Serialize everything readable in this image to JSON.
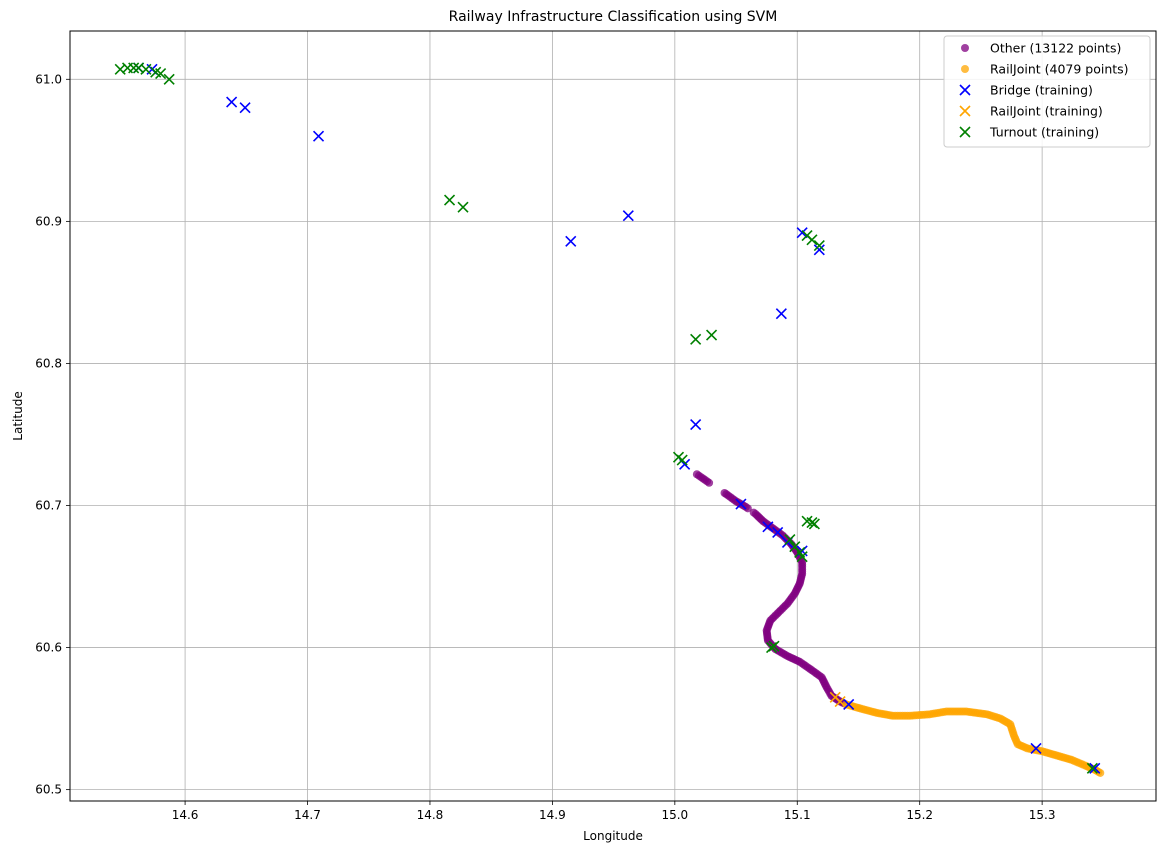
{
  "chart_data": {
    "type": "scatter",
    "title": "Railway Infrastructure Classification using SVM",
    "xlabel": "Longitude",
    "ylabel": "Latitude",
    "xlim": [
      14.506,
      15.393
    ],
    "ylim": [
      60.492,
      61.034
    ],
    "xticks": [
      14.6,
      14.7,
      14.8,
      14.9,
      15.0,
      15.1,
      15.2,
      15.3
    ],
    "yticks": [
      60.5,
      60.6,
      60.7,
      60.8,
      60.9,
      61.0
    ],
    "xtick_labels": [
      "14.6",
      "14.7",
      "14.8",
      "14.9",
      "15.0",
      "15.1",
      "15.2",
      "15.3"
    ],
    "ytick_labels": [
      "60.5",
      "60.6",
      "60.7",
      "60.8",
      "60.9",
      "61.0"
    ],
    "grid": true,
    "legend_position": "top-right",
    "series": [
      {
        "name": "Other (13122 points)",
        "marker": "circle",
        "color": "#800080",
        "alpha": 0.75,
        "path": [
          [
            15.018,
            60.722
          ],
          [
            15.028,
            60.716
          ],
          [
            15.035,
            60.712
          ],
          [
            15.042,
            60.708
          ],
          [
            15.05,
            60.703
          ],
          [
            15.058,
            60.699
          ],
          [
            15.066,
            60.694
          ],
          [
            15.072,
            60.689
          ],
          [
            15.08,
            60.684
          ],
          [
            15.088,
            60.679
          ],
          [
            15.095,
            60.673
          ],
          [
            15.1,
            60.667
          ],
          [
            15.104,
            60.66
          ],
          [
            15.104,
            60.652
          ],
          [
            15.102,
            60.645
          ],
          [
            15.098,
            60.638
          ],
          [
            15.092,
            60.631
          ],
          [
            15.085,
            60.625
          ],
          [
            15.078,
            60.619
          ],
          [
            15.075,
            60.612
          ],
          [
            15.076,
            60.605
          ],
          [
            15.082,
            60.599
          ],
          [
            15.092,
            60.594
          ],
          [
            15.102,
            60.59
          ],
          [
            15.112,
            60.584
          ],
          [
            15.12,
            60.579
          ],
          [
            15.124,
            60.572
          ],
          [
            15.128,
            60.566
          ],
          [
            15.135,
            60.562
          ],
          [
            15.14,
            60.56
          ]
        ],
        "gaps": [
          [
            15.028,
            15.04
          ],
          [
            15.06,
            15.064
          ]
        ]
      },
      {
        "name": "RailJoint (4079 points)",
        "marker": "circle",
        "color": "#FFA500",
        "alpha": 0.75,
        "path": [
          [
            15.14,
            60.56
          ],
          [
            15.152,
            60.557
          ],
          [
            15.165,
            60.554
          ],
          [
            15.178,
            60.552
          ],
          [
            15.192,
            60.552
          ],
          [
            15.208,
            60.553
          ],
          [
            15.222,
            60.555
          ],
          [
            15.238,
            60.555
          ],
          [
            15.255,
            60.553
          ],
          [
            15.266,
            60.55
          ],
          [
            15.274,
            60.546
          ],
          [
            15.277,
            60.538
          ],
          [
            15.28,
            60.532
          ],
          [
            15.288,
            60.529
          ],
          [
            15.3,
            60.527
          ],
          [
            15.312,
            60.524
          ],
          [
            15.324,
            60.521
          ],
          [
            15.335,
            60.517
          ],
          [
            15.343,
            60.514
          ],
          [
            15.349,
            60.511
          ]
        ]
      },
      {
        "name": "Bridge (training)",
        "marker": "x",
        "color": "#0000FF",
        "points": [
          [
            14.562,
            61.008
          ],
          [
            14.573,
            61.007
          ],
          [
            14.638,
            60.984
          ],
          [
            14.649,
            60.98
          ],
          [
            14.709,
            60.96
          ],
          [
            14.915,
            60.886
          ],
          [
            14.962,
            60.904
          ],
          [
            15.017,
            60.757
          ],
          [
            15.104,
            60.892
          ],
          [
            15.118,
            60.88
          ],
          [
            15.087,
            60.835
          ],
          [
            15.008,
            60.729
          ],
          [
            15.054,
            60.701
          ],
          [
            15.076,
            60.685
          ],
          [
            15.084,
            60.681
          ],
          [
            15.092,
            60.674
          ],
          [
            15.104,
            60.668
          ],
          [
            15.142,
            60.56
          ],
          [
            15.295,
            60.529
          ],
          [
            15.343,
            60.515
          ]
        ]
      },
      {
        "name": "RailJoint (training)",
        "marker": "x",
        "color": "#FFA500",
        "points": [
          [
            15.131,
            60.565
          ],
          [
            15.135,
            60.562
          ]
        ]
      },
      {
        "name": "Turnout (training)",
        "marker": "x",
        "color": "#008000",
        "points": [
          [
            14.547,
            61.007
          ],
          [
            14.553,
            61.008
          ],
          [
            14.558,
            61.008
          ],
          [
            14.562,
            61.008
          ],
          [
            14.568,
            61.007
          ],
          [
            14.576,
            61.005
          ],
          [
            14.58,
            61.004
          ],
          [
            14.587,
            61.0
          ],
          [
            14.816,
            60.915
          ],
          [
            14.827,
            60.91
          ],
          [
            15.017,
            60.817
          ],
          [
            15.03,
            60.82
          ],
          [
            15.108,
            60.89
          ],
          [
            15.112,
            60.887
          ],
          [
            15.118,
            60.883
          ],
          [
            15.003,
            60.734
          ],
          [
            15.006,
            60.732
          ],
          [
            15.094,
            60.676
          ],
          [
            15.098,
            60.671
          ],
          [
            15.102,
            60.667
          ],
          [
            15.104,
            60.664
          ],
          [
            15.108,
            60.689
          ],
          [
            15.112,
            60.688
          ],
          [
            15.114,
            60.687
          ],
          [
            15.079,
            60.6
          ],
          [
            15.081,
            60.601
          ],
          [
            15.341,
            60.515
          ]
        ]
      }
    ]
  },
  "legend": {
    "items": [
      {
        "label": "Other (13122 points)",
        "marker": "circle",
        "color": "#800080"
      },
      {
        "label": "RailJoint (4079 points)",
        "marker": "circle",
        "color": "#FFA500"
      },
      {
        "label": "Bridge (training)",
        "marker": "x",
        "color": "#0000FF"
      },
      {
        "label": "RailJoint (training)",
        "marker": "x",
        "color": "#FFA500"
      },
      {
        "label": "Turnout (training)",
        "marker": "x",
        "color": "#008000"
      }
    ]
  }
}
